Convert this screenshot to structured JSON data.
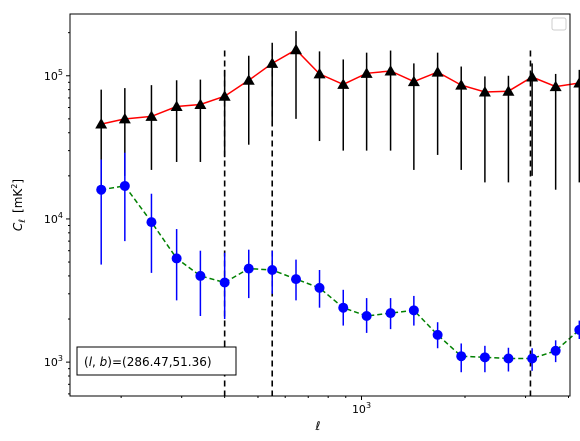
{
  "chart_data": {
    "type": "line",
    "xlabel": "ℓ",
    "ylabel_main": "C",
    "ylabel_sub": "ℓ",
    "ylabel_unit_pre": "[mK",
    "ylabel_unit_exp": "2",
    "ylabel_unit_post": "]",
    "xscale": "log",
    "yscale": "log",
    "xlim": [
      142,
      4040
    ],
    "ylim": [
      580,
      270000
    ],
    "x_major_ticks": [
      {
        "value": 1000,
        "base": "10",
        "exp": "3"
      }
    ],
    "y_major_ticks": [
      {
        "value": 1000,
        "base": "10",
        "exp": "3"
      },
      {
        "value": 10000,
        "base": "10",
        "exp": "4"
      },
      {
        "value": 100000,
        "base": "10",
        "exp": "5"
      }
    ],
    "vlines": [
      400,
      550,
      3100
    ],
    "annotation": "(l, b)=(286.47,51.36)",
    "annotation_parts": {
      "open": "(",
      "l": "l",
      "comma": ", ",
      "b": "b",
      "close": ")=(286.47,51.36)"
    },
    "legend": {
      "placement": "top-right",
      "entries": []
    },
    "series": [
      {
        "color": "#ff0000",
        "linestyle": "solid",
        "marker": "triangle",
        "marker_color": "#000000",
        "errorbar_color": "#000000",
        "x": [
          175,
          205,
          245,
          290,
          340,
          400,
          470,
          550,
          645,
          755,
          885,
          1035,
          1215,
          1420,
          1665,
          1950,
          2285,
          2675,
          3135,
          3670,
          4300
        ],
        "y": [
          46000,
          50000,
          52000,
          61000,
          63000,
          72000,
          93000,
          122000,
          152000,
          103000,
          87000,
          104000,
          108000,
          91000,
          106000,
          86000,
          77000,
          78000,
          98000,
          84000,
          89000
        ],
        "yerr_low": [
          17000,
          20000,
          22000,
          25000,
          25000,
          27000,
          33000,
          45000,
          50000,
          35000,
          30000,
          30000,
          30000,
          22000,
          28000,
          22000,
          18000,
          18000,
          20000,
          16000,
          18000
        ],
        "yerr_high": [
          80000,
          82000,
          86000,
          93000,
          94000,
          110000,
          138000,
          170000,
          205000,
          148000,
          130000,
          145000,
          150000,
          122000,
          145000,
          116000,
          99000,
          100000,
          122000,
          103000,
          110000
        ]
      },
      {
        "color": "#008000",
        "linestyle": "dashed",
        "marker": "circle",
        "marker_color": "#0000ff",
        "errorbar_color": "#0000ff",
        "x": [
          175,
          205,
          245,
          290,
          340,
          400,
          470,
          550,
          645,
          755,
          885,
          1035,
          1215,
          1420,
          1665,
          1950,
          2285,
          2675,
          3135,
          3670,
          4300
        ],
        "y": [
          16000,
          17000,
          9500,
          5300,
          4000,
          3600,
          4500,
          4400,
          3800,
          3300,
          2400,
          2100,
          2200,
          2300,
          1550,
          1100,
          1080,
          1060,
          1060,
          1200,
          1680
        ],
        "yerr_low": [
          4800,
          7000,
          4200,
          2700,
          2100,
          2000,
          2800,
          3000,
          2700,
          2400,
          1800,
          1600,
          1700,
          1800,
          1250,
          850,
          850,
          860,
          870,
          1000,
          1450
        ],
        "yerr_high": [
          26000,
          29000,
          15000,
          8500,
          6000,
          5800,
          6100,
          6000,
          5200,
          4400,
          3200,
          2800,
          2800,
          2900,
          1900,
          1350,
          1300,
          1260,
          1250,
          1420,
          1950
        ]
      }
    ]
  }
}
